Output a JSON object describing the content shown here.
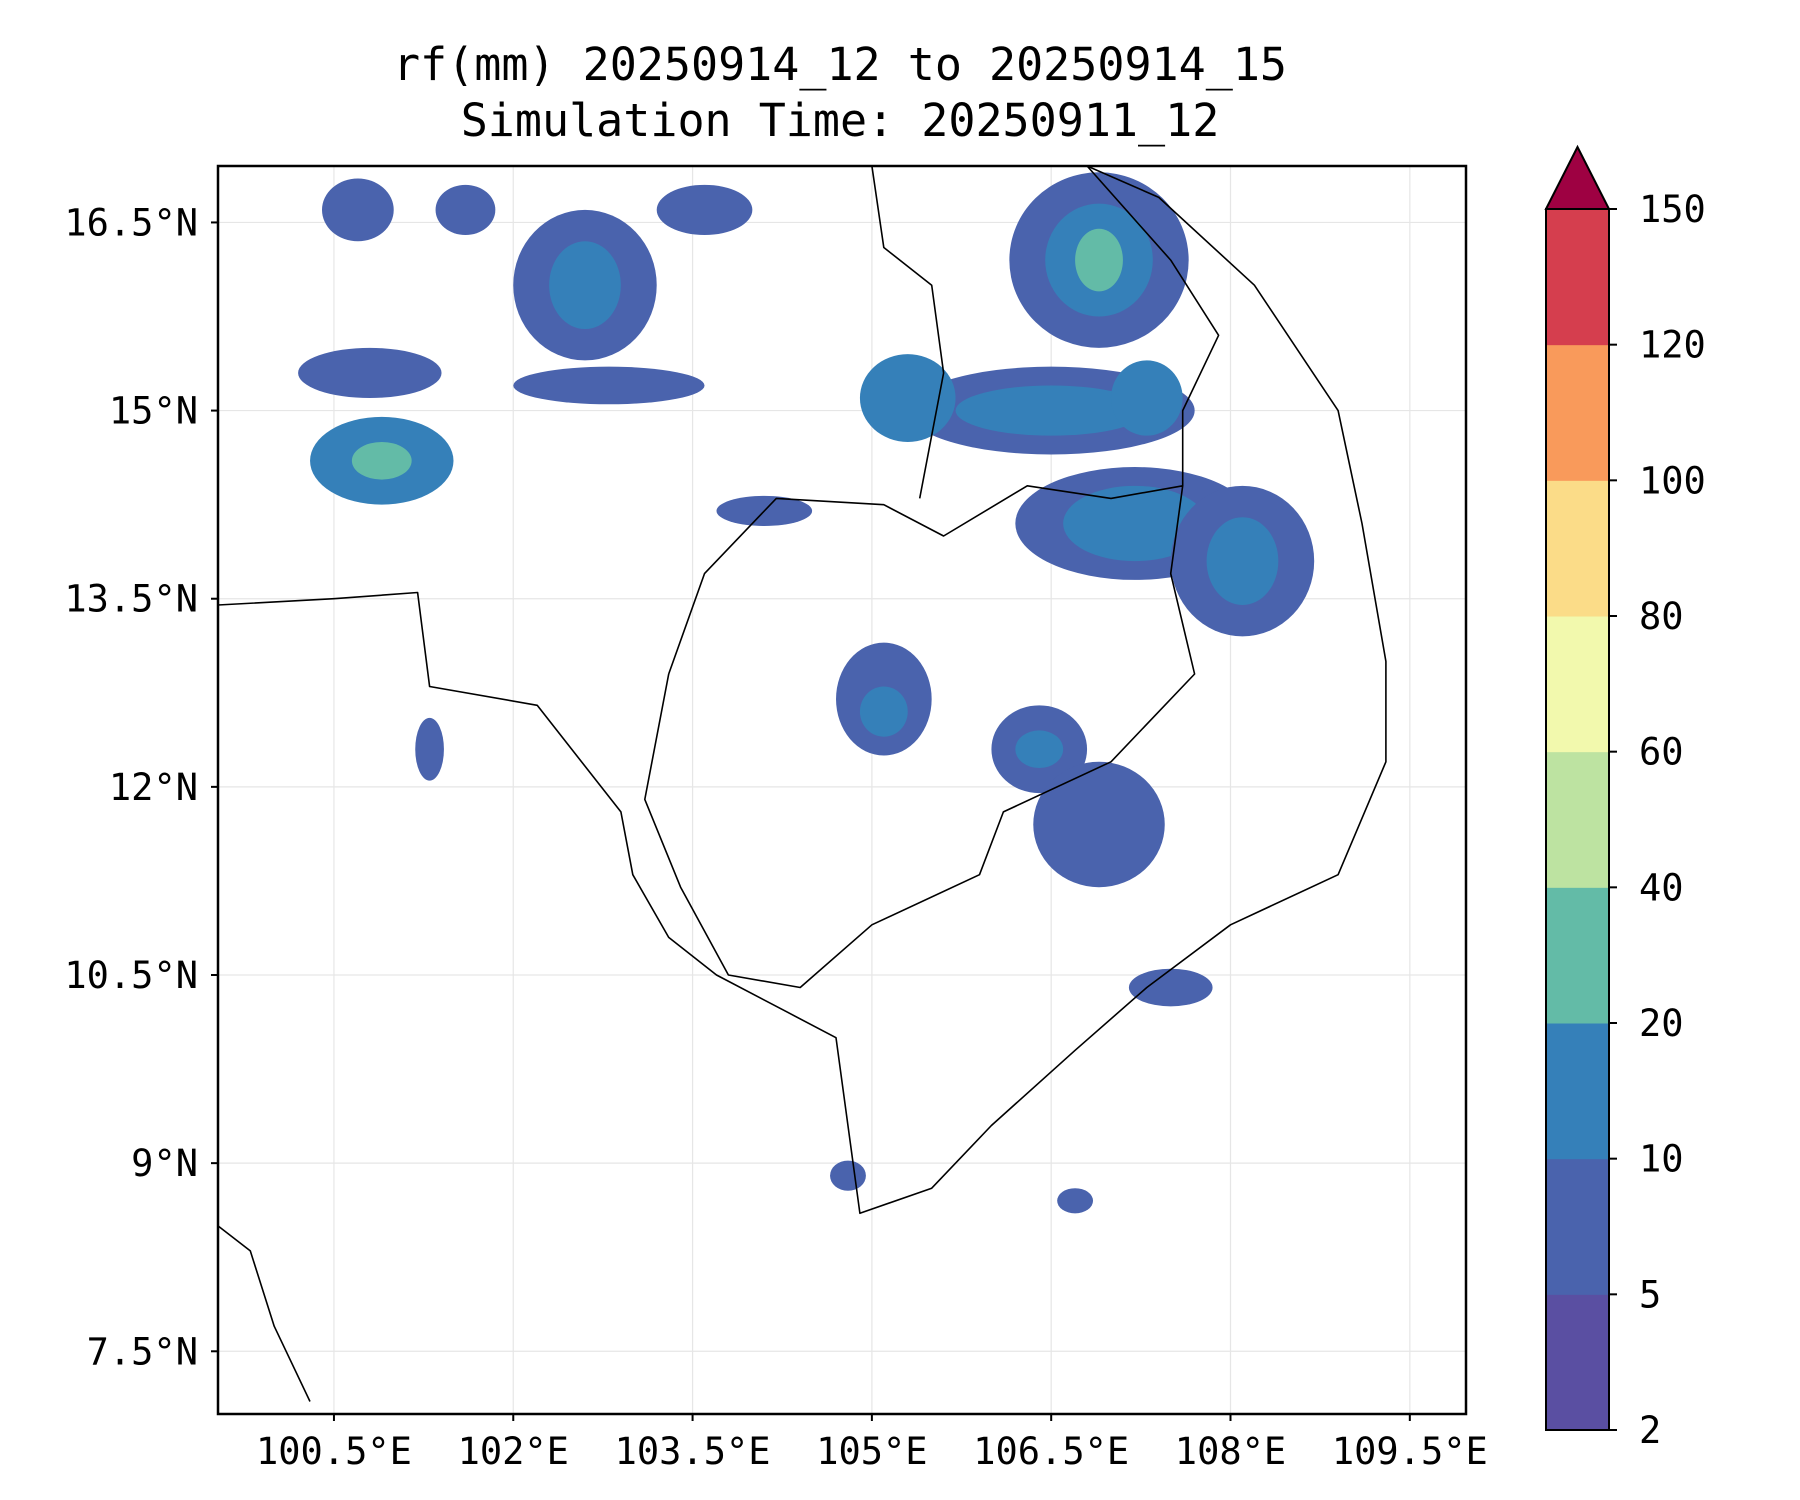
{
  "chart_data": {
    "type": "heatmap",
    "title": "rf(mm) 20250914_12 to 20250914_15",
    "subtitle": "Simulation Time: 20250911_12",
    "xlabel": "",
    "ylabel": "",
    "xlim": [
      99.53,
      109.97
    ],
    "ylim": [
      7.0,
      16.95
    ],
    "x_ticks": [
      {
        "value": 100.5,
        "label": "100.5°E"
      },
      {
        "value": 102.0,
        "label": "102°E"
      },
      {
        "value": 103.5,
        "label": "103.5°E"
      },
      {
        "value": 105.0,
        "label": "105°E"
      },
      {
        "value": 106.5,
        "label": "106.5°E"
      },
      {
        "value": 108.0,
        "label": "108°E"
      },
      {
        "value": 109.5,
        "label": "109.5°E"
      }
    ],
    "y_ticks": [
      {
        "value": 7.5,
        "label": "7.5°N"
      },
      {
        "value": 9.0,
        "label": "9°N"
      },
      {
        "value": 10.5,
        "label": "10.5°N"
      },
      {
        "value": 12.0,
        "label": "12°N"
      },
      {
        "value": 13.5,
        "label": "13.5°N"
      },
      {
        "value": 15.0,
        "label": "15°N"
      },
      {
        "value": 16.5,
        "label": "16.5°N"
      }
    ],
    "grid": true,
    "colorbar": {
      "levels": [
        2,
        5,
        10,
        20,
        40,
        60,
        80,
        100,
        120,
        150
      ],
      "labels": [
        "2",
        "5",
        "10",
        "20",
        "40",
        "60",
        "80",
        "100",
        "120",
        "150"
      ],
      "colors": [
        "#5a4fa2",
        "#4a63ad",
        "#3580b9",
        "#63bba7",
        "#bde3a1",
        "#f2f9ad",
        "#fbdc88",
        "#f99a5b",
        "#d53e4e",
        "#9e0142"
      ],
      "extend": "max"
    },
    "rain_cells": [
      {
        "lon": 100.9,
        "lat": 14.6,
        "rx": 0.6,
        "ry": 0.35,
        "level": 2
      },
      {
        "lon": 100.9,
        "lat": 14.6,
        "rx": 0.25,
        "ry": 0.15,
        "level": 3
      },
      {
        "lon": 100.8,
        "lat": 15.3,
        "rx": 0.6,
        "ry": 0.2,
        "level": 1
      },
      {
        "lon": 100.7,
        "lat": 16.6,
        "rx": 0.3,
        "ry": 0.25,
        "level": 1
      },
      {
        "lon": 101.6,
        "lat": 16.6,
        "rx": 0.25,
        "ry": 0.2,
        "level": 1
      },
      {
        "lon": 102.6,
        "lat": 16.0,
        "rx": 0.6,
        "ry": 0.6,
        "level": 1
      },
      {
        "lon": 102.6,
        "lat": 16.0,
        "rx": 0.3,
        "ry": 0.35,
        "level": 2
      },
      {
        "lon": 102.8,
        "lat": 15.2,
        "rx": 0.8,
        "ry": 0.15,
        "level": 1
      },
      {
        "lon": 103.6,
        "lat": 16.6,
        "rx": 0.4,
        "ry": 0.2,
        "level": 1
      },
      {
        "lon": 101.3,
        "lat": 12.3,
        "rx": 0.12,
        "ry": 0.25,
        "level": 1
      },
      {
        "lon": 106.9,
        "lat": 16.2,
        "rx": 0.75,
        "ry": 0.7,
        "level": 1
      },
      {
        "lon": 106.9,
        "lat": 16.2,
        "rx": 0.45,
        "ry": 0.45,
        "level": 2
      },
      {
        "lon": 106.9,
        "lat": 16.2,
        "rx": 0.2,
        "ry": 0.25,
        "level": 3
      },
      {
        "lon": 106.5,
        "lat": 15.0,
        "rx": 1.2,
        "ry": 0.35,
        "level": 1
      },
      {
        "lon": 106.5,
        "lat": 15.0,
        "rx": 0.8,
        "ry": 0.2,
        "level": 2
      },
      {
        "lon": 105.3,
        "lat": 15.1,
        "rx": 0.4,
        "ry": 0.35,
        "level": 2
      },
      {
        "lon": 107.3,
        "lat": 15.1,
        "rx": 0.3,
        "ry": 0.3,
        "level": 2
      },
      {
        "lon": 107.2,
        "lat": 14.1,
        "rx": 1.0,
        "ry": 0.45,
        "level": 1
      },
      {
        "lon": 107.2,
        "lat": 14.1,
        "rx": 0.6,
        "ry": 0.3,
        "level": 2
      },
      {
        "lon": 108.1,
        "lat": 13.8,
        "rx": 0.6,
        "ry": 0.6,
        "level": 1
      },
      {
        "lon": 108.1,
        "lat": 13.8,
        "rx": 0.3,
        "ry": 0.35,
        "level": 2
      },
      {
        "lon": 105.1,
        "lat": 12.7,
        "rx": 0.4,
        "ry": 0.45,
        "level": 1
      },
      {
        "lon": 105.1,
        "lat": 12.6,
        "rx": 0.2,
        "ry": 0.2,
        "level": 2
      },
      {
        "lon": 106.4,
        "lat": 12.3,
        "rx": 0.4,
        "ry": 0.35,
        "level": 1
      },
      {
        "lon": 106.4,
        "lat": 12.3,
        "rx": 0.2,
        "ry": 0.15,
        "level": 2
      },
      {
        "lon": 106.9,
        "lat": 11.7,
        "rx": 0.55,
        "ry": 0.5,
        "level": 1
      },
      {
        "lon": 104.1,
        "lat": 14.2,
        "rx": 0.4,
        "ry": 0.12,
        "level": 1
      },
      {
        "lon": 107.5,
        "lat": 10.4,
        "rx": 0.35,
        "ry": 0.15,
        "level": 1
      },
      {
        "lon": 106.7,
        "lat": 8.7,
        "rx": 0.15,
        "ry": 0.1,
        "level": 1
      },
      {
        "lon": 104.8,
        "lat": 8.9,
        "rx": 0.15,
        "ry": 0.12,
        "level": 1
      }
    ]
  }
}
